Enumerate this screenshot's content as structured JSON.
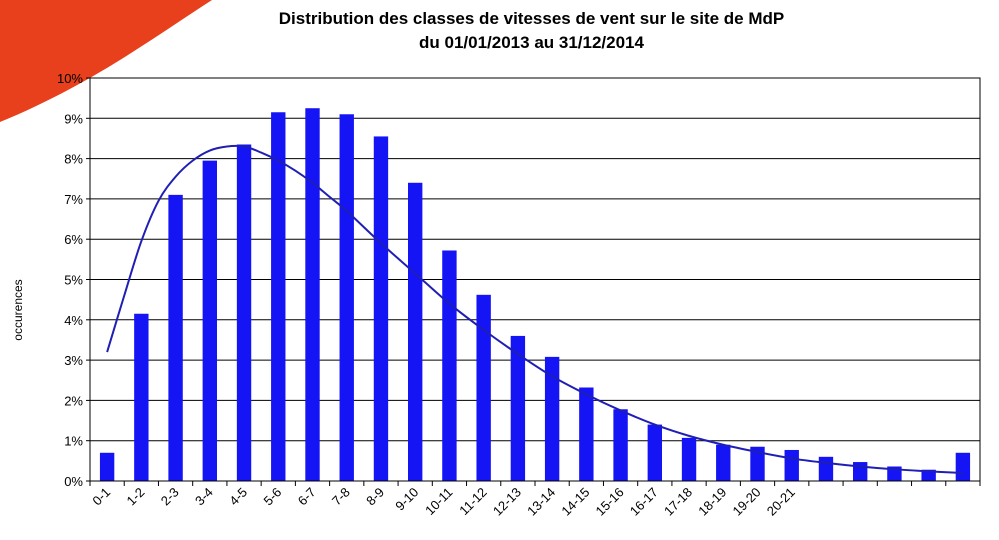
{
  "colors": {
    "bar": "#1414f5",
    "curve": "#1f1fb4",
    "grid": "#000000",
    "corner": "#e8401c"
  },
  "chart_data": {
    "type": "bar",
    "title_line1": "Distribution des classes de vitesses de vent sur le site de MdP",
    "title_line2": "du 01/01/2013 au 31/12/2014",
    "ylabel": "occurences",
    "xlabel": "",
    "ylim": [
      0,
      10
    ],
    "yticks": [
      "0%",
      "1%",
      "2%",
      "3%",
      "4%",
      "5%",
      "6%",
      "7%",
      "8%",
      "9%",
      "10%"
    ],
    "grid": true,
    "legend": "none",
    "categories": [
      "0-1",
      "1-2",
      "2-3",
      "3-4",
      "4-5",
      "5-6",
      "6-7",
      "7-8",
      "8-9",
      "9-10",
      "10-11",
      "11-12",
      "12-13",
      "13-14",
      "14-15",
      "15-16",
      "16-17",
      "17-18",
      "18-19",
      "19-20",
      "20-21",
      "",
      "",
      "",
      "",
      ""
    ],
    "series": [
      {
        "type": "bar",
        "values": [
          0.7,
          4.15,
          7.1,
          7.95,
          8.35,
          9.15,
          9.25,
          9.1,
          8.55,
          7.4,
          5.72,
          4.62,
          3.6,
          3.08,
          2.32,
          1.78,
          1.4,
          1.07,
          0.9,
          0.85,
          0.77,
          0.6,
          0.47,
          0.36,
          0.28,
          0.7
        ]
      },
      {
        "type": "line",
        "x": [
          1,
          1.5,
          2,
          2.5,
          3,
          3.5,
          4,
          4.5,
          5,
          5.5,
          6,
          6.5,
          7,
          7.5,
          8,
          9,
          10,
          11,
          12,
          13,
          14,
          15,
          16,
          17,
          18,
          19,
          20,
          21,
          22,
          23,
          24,
          25,
          26
        ],
        "values": [
          3.2,
          4.6,
          5.95,
          6.95,
          7.55,
          7.95,
          8.2,
          8.3,
          8.3,
          8.15,
          7.95,
          7.7,
          7.4,
          7.05,
          6.7,
          5.9,
          5.15,
          4.4,
          3.75,
          3.15,
          2.6,
          2.15,
          1.75,
          1.4,
          1.12,
          0.9,
          0.72,
          0.56,
          0.45,
          0.36,
          0.29,
          0.24,
          0.2
        ]
      }
    ]
  }
}
